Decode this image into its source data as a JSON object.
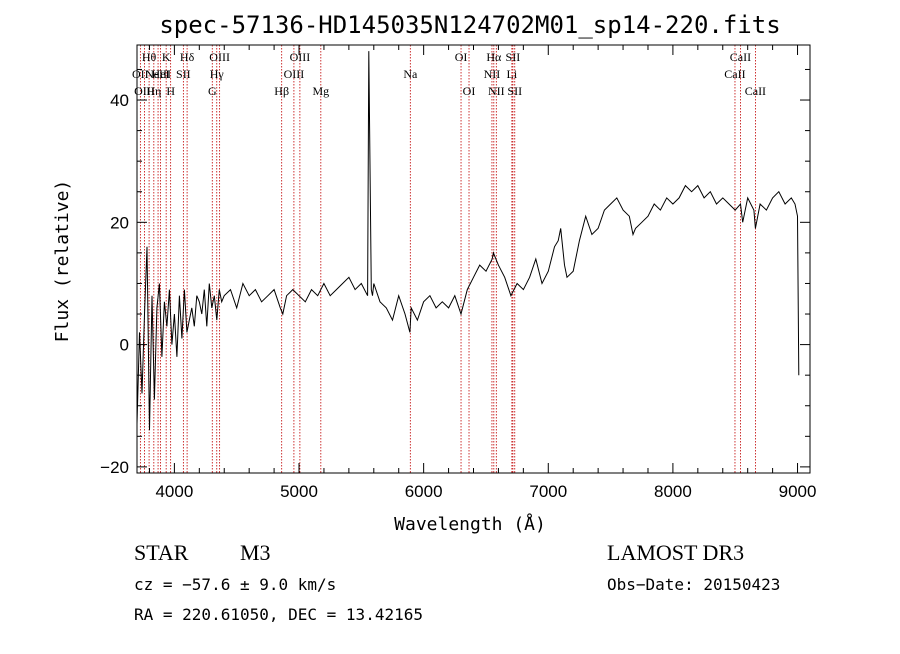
{
  "chart_data": {
    "type": "line",
    "title": "spec-57136-HD145035N124702M01_sp14-220.fits",
    "xlabel": "Wavelength (Å)",
    "ylabel": "Flux (relative)",
    "xlim": [
      3700,
      9100
    ],
    "ylim": [
      -21,
      49
    ],
    "xticks": [
      4000,
      5000,
      6000,
      7000,
      8000,
      9000
    ],
    "yticks": [
      -20,
      0,
      20,
      40
    ],
    "xtick_labels": [
      "4000",
      "5000",
      "6000",
      "7000",
      "8000",
      "9000"
    ],
    "ytick_labels": [
      "−20",
      "0",
      "20",
      "40"
    ],
    "grid": false,
    "series": [
      {
        "name": "flux",
        "x": [
          3700,
          3720,
          3740,
          3760,
          3780,
          3800,
          3820,
          3840,
          3860,
          3880,
          3900,
          3920,
          3940,
          3960,
          3980,
          4000,
          4020,
          4040,
          4060,
          4080,
          4100,
          4120,
          4140,
          4160,
          4180,
          4200,
          4220,
          4240,
          4260,
          4280,
          4300,
          4320,
          4340,
          4360,
          4380,
          4400,
          4450,
          4500,
          4550,
          4600,
          4650,
          4700,
          4750,
          4800,
          4850,
          4870,
          4900,
          4950,
          5000,
          5050,
          5100,
          5150,
          5200,
          5250,
          5300,
          5350,
          5400,
          5450,
          5500,
          5550,
          5560,
          5580,
          5590,
          5600,
          5650,
          5700,
          5750,
          5800,
          5850,
          5890,
          5900,
          5950,
          6000,
          6050,
          6100,
          6150,
          6200,
          6250,
          6300,
          6350,
          6400,
          6450,
          6500,
          6550,
          6560,
          6600,
          6650,
          6700,
          6750,
          6800,
          6850,
          6900,
          6950,
          7000,
          7050,
          7080,
          7100,
          7130,
          7150,
          7200,
          7250,
          7300,
          7350,
          7400,
          7450,
          7500,
          7550,
          7600,
          7650,
          7680,
          7700,
          7750,
          7800,
          7850,
          7900,
          7950,
          8000,
          8050,
          8100,
          8150,
          8200,
          8250,
          8300,
          8350,
          8400,
          8450,
          8500,
          8542,
          8560,
          8600,
          8650,
          8662,
          8700,
          8750,
          8800,
          8850,
          8900,
          8950,
          8980,
          9000,
          9010
        ],
        "values": [
          -13,
          2,
          -8,
          5,
          16,
          -14,
          8,
          -9,
          6,
          10,
          -2,
          7,
          3,
          9,
          0,
          5,
          -2,
          8,
          1,
          9,
          2,
          4,
          6,
          3,
          8,
          7,
          5,
          9,
          3,
          10,
          6,
          8,
          4,
          9,
          7,
          8,
          9,
          6,
          10,
          8,
          9,
          7,
          8,
          9,
          6,
          5,
          8,
          9,
          8,
          7,
          9,
          8,
          10,
          8,
          9,
          10,
          11,
          9,
          10,
          8,
          48,
          9,
          8,
          10,
          7,
          6,
          4,
          8,
          5,
          2,
          6,
          4,
          7,
          8,
          6,
          7,
          6,
          8,
          5,
          9,
          11,
          13,
          12,
          14,
          15,
          13,
          11,
          8,
          10,
          9,
          11,
          14,
          10,
          12,
          16,
          17,
          19,
          13,
          11,
          12,
          17,
          21,
          18,
          19,
          22,
          23,
          24,
          22,
          21,
          18,
          19,
          20,
          21,
          23,
          22,
          24,
          23,
          24,
          26,
          25,
          26,
          24,
          25,
          23,
          24,
          23,
          22,
          23,
          20,
          24,
          22,
          19,
          23,
          22,
          24,
          25,
          23,
          24,
          23,
          21,
          -5
        ],
        "color": "#000000"
      }
    ],
    "emission_lines": [
      {
        "wl": 3727,
        "label": "OII",
        "row": 1
      },
      {
        "wl": 3760,
        "label": "OIII",
        "row": 2
      },
      {
        "wl": 3797,
        "label": "Hθ",
        "row": 0
      },
      {
        "wl": 3835,
        "label": "Hη",
        "row": 2
      },
      {
        "wl": 3869,
        "label": "NeIII",
        "row": 1
      },
      {
        "wl": 3889,
        "label": "HeI",
        "row": 1
      },
      {
        "wl": 3934,
        "label": "K",
        "row": 0
      },
      {
        "wl": 3970,
        "label": "H",
        "row": 2
      },
      {
        "wl": 4072,
        "label": "SII",
        "row": 1
      },
      {
        "wl": 4102,
        "label": "Hδ",
        "row": 0
      },
      {
        "wl": 4304,
        "label": "G",
        "row": 2
      },
      {
        "wl": 4340,
        "label": "Hγ",
        "row": 1
      },
      {
        "wl": 4363,
        "label": "OIII",
        "row": 0
      },
      {
        "wl": 4861,
        "label": "Hβ",
        "row": 2
      },
      {
        "wl": 4959,
        "label": "OIII",
        "row": 1
      },
      {
        "wl": 5007,
        "label": "OIII",
        "row": 0
      },
      {
        "wl": 5175,
        "label": "Mg",
        "row": 2
      },
      {
        "wl": 5893,
        "label": "Na",
        "row": 1
      },
      {
        "wl": 6300,
        "label": "OI",
        "row": 0
      },
      {
        "wl": 6364,
        "label": "OI",
        "row": 2
      },
      {
        "wl": 6548,
        "label": "NII",
        "row": 1
      },
      {
        "wl": 6563,
        "label": "Hα",
        "row": 0
      },
      {
        "wl": 6583,
        "label": "NII",
        "row": 2
      },
      {
        "wl": 6708,
        "label": "Li",
        "row": 1
      },
      {
        "wl": 6716,
        "label": "SII",
        "row": 0
      },
      {
        "wl": 6731,
        "label": "SII",
        "row": 2
      },
      {
        "wl": 8498,
        "label": "CaII",
        "row": 1
      },
      {
        "wl": 8542,
        "label": "CaII",
        "row": 0
      },
      {
        "wl": 8662,
        "label": "CaII",
        "row": 2
      }
    ]
  },
  "info": {
    "object_type": "STAR",
    "subclass": "M3",
    "survey": "LAMOST DR3",
    "cz": "cz = −57.6 ± 9.0 km/s",
    "obs_date": "Obs−Date: 20150423",
    "coords": "RA = 220.61050, DEC =  13.42165"
  },
  "colors": {
    "line_marker": "#c00000",
    "axis": "#000000",
    "background": "#ffffff"
  }
}
